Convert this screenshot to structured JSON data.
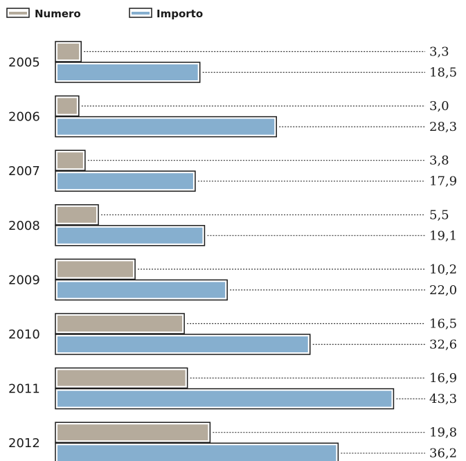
{
  "colors": {
    "numero": "#b5ab9c",
    "importo": "#86afcf"
  },
  "chart_data": {
    "type": "bar",
    "orientation": "horizontal",
    "categories": [
      "2005",
      "2006",
      "2007",
      "2008",
      "2009",
      "2010",
      "2011",
      "2012"
    ],
    "series": [
      {
        "name": "Numero",
        "values": [
          3.3,
          3.0,
          3.8,
          5.5,
          10.2,
          16.5,
          16.9,
          19.8
        ],
        "labels": [
          "3,3",
          "3,0",
          "3,8",
          "5,5",
          "10,2",
          "16,5",
          "16,9",
          "19,8"
        ]
      },
      {
        "name": "Importo",
        "values": [
          18.5,
          28.3,
          17.9,
          19.1,
          22.0,
          32.6,
          43.3,
          36.2
        ],
        "labels": [
          "18,5",
          "28,3",
          "17,9",
          "19,1",
          "22,0",
          "32,6",
          "43,3",
          "36,2"
        ]
      }
    ],
    "legend_position": "top-left",
    "grid": false
  }
}
